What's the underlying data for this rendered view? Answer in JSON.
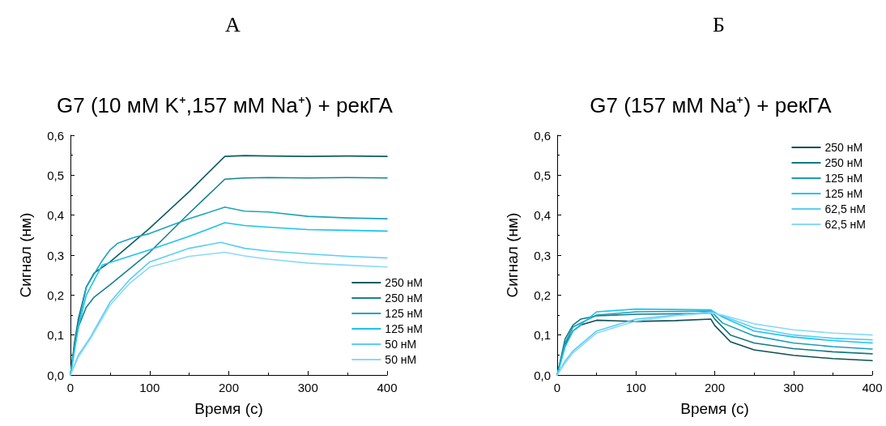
{
  "chart_data": [
    {
      "type": "line",
      "title": "G7 (10 мМ K⁺,157 мМ Na⁺) + рекГА",
      "annotations": [
        "А"
      ],
      "xlabel": "Время (с)",
      "ylabel": "Сигнал (нм)",
      "xlim": [
        0,
        400
      ],
      "ylim": [
        0,
        0.6
      ],
      "xticks": [
        0,
        100,
        200,
        300,
        400
      ],
      "yticks": [
        {
          "value": 0,
          "label": "0,0"
        },
        {
          "value": 0.1,
          "label": "0,1"
        },
        {
          "value": 0.2,
          "label": "0,2"
        },
        {
          "value": 0.3,
          "label": "0,3"
        },
        {
          "value": 0.4,
          "label": "0,4"
        },
        {
          "value": 0.5,
          "label": "0,5"
        },
        {
          "value": 0.6,
          "label": "0,6"
        }
      ],
      "grid": false,
      "legend": "bottom right",
      "marker": "none",
      "series": [
        {
          "name": "250 нМ",
          "color": "#0d5d62",
          "x": [
            0,
            5,
            10,
            20,
            30,
            50,
            100,
            150,
            195,
            220,
            250,
            300,
            350,
            400
          ],
          "values": [
            0,
            0.08,
            0.14,
            0.22,
            0.255,
            0.283,
            0.367,
            0.459,
            0.547,
            0.549,
            0.548,
            0.547,
            0.548,
            0.547
          ]
        },
        {
          "name": "250 нМ",
          "color": "#16838d",
          "x": [
            0,
            5,
            10,
            20,
            30,
            50,
            100,
            150,
            195,
            220,
            250,
            300,
            350,
            400
          ],
          "values": [
            0,
            0.07,
            0.12,
            0.17,
            0.195,
            0.226,
            0.307,
            0.405,
            0.49,
            0.493,
            0.494,
            0.493,
            0.494,
            0.493
          ]
        },
        {
          "name": "125 нМ",
          "color": "#1aa5bd",
          "x": [
            0,
            5,
            10,
            20,
            40,
            50,
            60,
            80,
            100,
            150,
            195,
            220,
            250,
            300,
            350,
            400
          ],
          "values": [
            0,
            0.07,
            0.13,
            0.22,
            0.286,
            0.313,
            0.33,
            0.344,
            0.354,
            0.391,
            0.42,
            0.41,
            0.408,
            0.397,
            0.393,
            0.391
          ]
        },
        {
          "name": "125 нМ",
          "color": "#1cc3ee",
          "x": [
            0,
            5,
            10,
            20,
            40,
            100,
            150,
            195,
            220,
            250,
            300,
            350,
            400
          ],
          "values": [
            0,
            0.06,
            0.12,
            0.2,
            0.275,
            0.313,
            0.347,
            0.381,
            0.374,
            0.37,
            0.364,
            0.362,
            0.36
          ]
        },
        {
          "name": "50 нМ",
          "color": "#5ccdf5",
          "x": [
            0,
            10,
            25,
            50,
            75,
            100,
            150,
            190,
            220,
            250,
            300,
            350,
            400
          ],
          "values": [
            0,
            0.05,
            0.094,
            0.182,
            0.239,
            0.283,
            0.317,
            0.332,
            0.317,
            0.31,
            0.303,
            0.297,
            0.293
          ]
        },
        {
          "name": "50 нМ",
          "color": "#8ad9f7",
          "x": [
            0,
            10,
            25,
            50,
            75,
            100,
            150,
            195,
            220,
            250,
            300,
            350,
            400
          ],
          "values": [
            0,
            0.045,
            0.09,
            0.175,
            0.23,
            0.27,
            0.297,
            0.307,
            0.298,
            0.29,
            0.28,
            0.275,
            0.27
          ]
        }
      ]
    },
    {
      "type": "line",
      "title": "G7 (157 мМ Na⁺) + рекГА",
      "annotations": [
        "Б"
      ],
      "xlabel": "Время (с)",
      "ylabel": "Сигнал (нм)",
      "xlim": [
        0,
        400
      ],
      "ylim": [
        0,
        0.6
      ],
      "xticks": [
        0,
        100,
        200,
        300,
        400
      ],
      "yticks": [
        {
          "value": 0,
          "label": "0,0"
        },
        {
          "value": 0.1,
          "label": "0,1"
        },
        {
          "value": 0.2,
          "label": "0,2"
        },
        {
          "value": 0.3,
          "label": "0,3"
        },
        {
          "value": 0.4,
          "label": "0,4"
        },
        {
          "value": 0.5,
          "label": "0,5"
        },
        {
          "value": 0.6,
          "label": "0,6"
        }
      ],
      "grid": false,
      "legend": "top right",
      "marker": "none",
      "series": [
        {
          "name": "250 нМ",
          "color": "#0d4f55",
          "x": [
            0,
            10,
            20,
            30,
            50,
            100,
            150,
            195,
            200,
            220,
            250,
            300,
            350,
            400
          ],
          "values": [
            0,
            0.076,
            0.11,
            0.125,
            0.137,
            0.134,
            0.136,
            0.14,
            0.124,
            0.083,
            0.063,
            0.049,
            0.041,
            0.036
          ]
        },
        {
          "name": "250 нМ",
          "color": "#127a85",
          "x": [
            0,
            10,
            20,
            30,
            50,
            100,
            150,
            195,
            200,
            220,
            250,
            300,
            350,
            400
          ],
          "values": [
            0,
            0.09,
            0.125,
            0.14,
            0.148,
            0.152,
            0.153,
            0.155,
            0.14,
            0.1,
            0.08,
            0.066,
            0.058,
            0.053
          ]
        },
        {
          "name": "125 нМ",
          "color": "#1a9fb8",
          "x": [
            0,
            10,
            20,
            50,
            100,
            150,
            195,
            210,
            250,
            300,
            350,
            400
          ],
          "values": [
            0,
            0.08,
            0.12,
            0.15,
            0.158,
            0.159,
            0.16,
            0.13,
            0.098,
            0.08,
            0.071,
            0.065
          ]
        },
        {
          "name": "125 нМ",
          "color": "#1cc3ee",
          "x": [
            0,
            10,
            20,
            50,
            100,
            150,
            195,
            210,
            250,
            300,
            350,
            400
          ],
          "values": [
            0,
            0.07,
            0.11,
            0.158,
            0.165,
            0.164,
            0.163,
            0.145,
            0.11,
            0.095,
            0.086,
            0.08
          ]
        },
        {
          "name": "62,5 нМ",
          "color": "#5ccdf5",
          "x": [
            0,
            10,
            20,
            50,
            100,
            150,
            195,
            210,
            250,
            300,
            350,
            400
          ],
          "values": [
            0,
            0.035,
            0.06,
            0.11,
            0.14,
            0.15,
            0.158,
            0.148,
            0.118,
            0.1,
            0.092,
            0.088
          ]
        },
        {
          "name": "62,5 нМ",
          "color": "#8ad9f7",
          "x": [
            0,
            10,
            20,
            50,
            100,
            150,
            195,
            210,
            250,
            300,
            350,
            400
          ],
          "values": [
            0,
            0.03,
            0.055,
            0.105,
            0.135,
            0.148,
            0.155,
            0.15,
            0.128,
            0.113,
            0.105,
            0.1
          ]
        }
      ]
    }
  ]
}
